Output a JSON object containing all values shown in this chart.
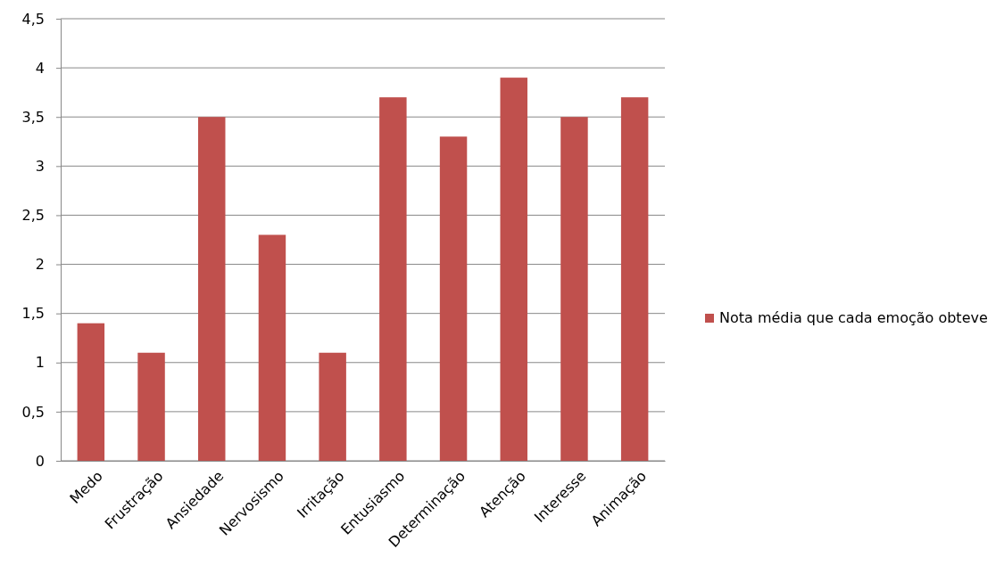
{
  "chart_data": {
    "type": "bar",
    "categories": [
      "Medo",
      "Frustração",
      "Ansiedade",
      "Nervosismo",
      "Irritação",
      "Entusiasmo",
      "Determinação",
      "Atenção",
      "Interesse",
      "Animação"
    ],
    "series": [
      {
        "name": "Nota média que cada emoção obteve",
        "color": "#c0504d",
        "values": [
          1.4,
          1.1,
          3.5,
          2.3,
          1.1,
          3.7,
          3.3,
          3.9,
          3.5,
          3.7
        ]
      }
    ],
    "ylim": [
      0,
      4.5
    ],
    "yticks": [
      0,
      {
        "value": 0.5,
        "label": "0,5"
      },
      1,
      {
        "value": 1.5,
        "label": "1,5"
      },
      2,
      {
        "value": 2.5,
        "label": "2,5"
      },
      3,
      {
        "value": 3.5,
        "label": "3,5"
      },
      4,
      {
        "value": 4.5,
        "label": "4,5"
      }
    ],
    "grid": "y",
    "legend": "right"
  }
}
